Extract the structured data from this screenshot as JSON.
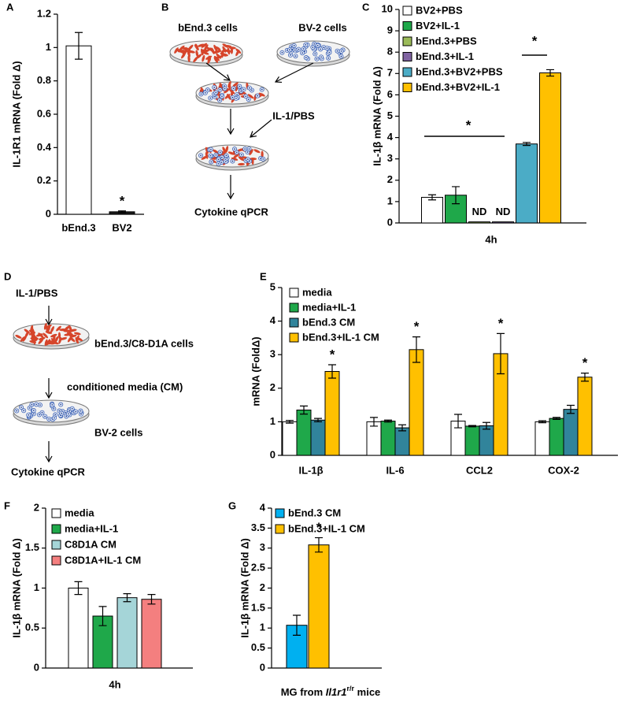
{
  "chart_data": [
    {
      "panel_label": "A",
      "type": "bar",
      "y_label": "IL-1R1 mRNA (Fold Δ)",
      "categories": [
        "bEnd.3",
        "BV2"
      ],
      "values": [
        1.01,
        0.015
      ],
      "errors": [
        0.08,
        0.005
      ],
      "colors": [
        "#ffffff",
        "#1a1a1a"
      ],
      "bar_labels": [
        null,
        "*"
      ],
      "ylim": [
        0,
        1.2
      ],
      "yticks": [
        0,
        0.2,
        0.4,
        0.6,
        0.8,
        1,
        1.2
      ]
    },
    {
      "panel_label": "C",
      "type": "bar",
      "y_label": "IL-1β mRNA (Fold Δ)",
      "categories": [
        "4h"
      ],
      "series": [
        {
          "name": "BV2+PBS",
          "color": "#ffffff",
          "values": [
            1.2
          ],
          "errors": [
            0.12
          ]
        },
        {
          "name": "BV2+IL-1",
          "color": "#1fa84a",
          "values": [
            1.3
          ],
          "errors": [
            0.4
          ]
        },
        {
          "name": "bEnd.3+PBS",
          "color": "#9bbb59",
          "values": [
            0.05
          ],
          "bar_labels": [
            "ND"
          ]
        },
        {
          "name": "bEnd.3+IL-1",
          "color": "#8064a2",
          "values": [
            0.05
          ],
          "bar_labels": [
            "ND"
          ]
        },
        {
          "name": "bEnd.3+BV2+PBS",
          "color": "#4bacc6",
          "values": [
            3.7
          ],
          "errors": [
            0.07
          ]
        },
        {
          "name": "bEnd.3+BV2+IL-1",
          "color": "#ffc000",
          "values": [
            7.03
          ],
          "errors": [
            0.15
          ]
        }
      ],
      "significance": [
        "*",
        "*"
      ],
      "ylim": [
        0,
        10
      ],
      "yticks": [
        0,
        1,
        2,
        3,
        4,
        5,
        6,
        7,
        8,
        9,
        10
      ]
    },
    {
      "panel_label": "E",
      "type": "bar",
      "y_label": "mRNA (FoldΔ)",
      "categories": [
        "IL-1β",
        "IL-6",
        "CCL2",
        "COX-2"
      ],
      "series": [
        {
          "name": "media",
          "color": "#ffffff",
          "values": [
            1.0,
            1.0,
            1.02,
            1.0
          ],
          "errors": [
            0.04,
            0.13,
            0.2,
            0.03
          ]
        },
        {
          "name": "media+IL-1",
          "color": "#1fa84a",
          "values": [
            1.35,
            1.02,
            0.87,
            1.1
          ],
          "errors": [
            0.12,
            0.03,
            0.02,
            0.03
          ]
        },
        {
          "name": "bEnd.3 CM",
          "color": "#31849b",
          "values": [
            1.05,
            0.82,
            0.88,
            1.37
          ],
          "errors": [
            0.05,
            0.09,
            0.1,
            0.12
          ]
        },
        {
          "name": "bEnd.3+IL-1 CM",
          "color": "#ffc000",
          "values": [
            2.5,
            3.15,
            3.03,
            2.33
          ],
          "errors": [
            0.2,
            0.38,
            0.6,
            0.12
          ],
          "bar_labels": [
            "*",
            "*",
            "*",
            "*"
          ]
        }
      ],
      "ylim": [
        0,
        5
      ],
      "yticks": [
        0,
        1,
        2,
        3,
        4,
        5
      ]
    },
    {
      "panel_label": "F",
      "type": "bar",
      "y_label": "IL-1β mRNA (Fold Δ)",
      "categories": [
        "4h"
      ],
      "series": [
        {
          "name": "media",
          "color": "#ffffff",
          "values": [
            1.0
          ],
          "errors": [
            0.08
          ]
        },
        {
          "name": "media+IL-1",
          "color": "#1fa84a",
          "values": [
            0.65
          ],
          "errors": [
            0.12
          ]
        },
        {
          "name": "C8D1A CM",
          "color": "#a5d5d8",
          "values": [
            0.88
          ],
          "errors": [
            0.05
          ]
        },
        {
          "name": "C8D1A+IL-1 CM",
          "color": "#f47f7f",
          "values": [
            0.86
          ],
          "errors": [
            0.06
          ]
        }
      ],
      "ylim": [
        0,
        2
      ],
      "yticks": [
        0,
        0.5,
        1,
        1.5,
        2
      ]
    },
    {
      "panel_label": "G",
      "type": "bar",
      "y_label": "IL-1β mRNA (Fold Δ)",
      "x_label": {
        "prefix": "MG from ",
        "gene": "Il1r1",
        "sup": "r/r",
        "suffix": " mice"
      },
      "series": [
        {
          "name": "bEnd.3 CM",
          "color": "#00b0f0",
          "values": [
            1.07
          ],
          "errors": [
            0.25
          ]
        },
        {
          "name": "bEnd.3+IL-1 CM",
          "color": "#ffc000",
          "values": [
            3.08
          ],
          "errors": [
            0.18
          ],
          "bar_labels": [
            "*"
          ]
        }
      ],
      "ylim": [
        0,
        4
      ],
      "yticks": [
        0,
        0.5,
        1,
        1.5,
        2,
        2.5,
        3,
        3.5,
        4
      ]
    }
  ],
  "diagrams": [
    {
      "panel_label": "B",
      "labels": [
        "bEnd.3 cells",
        "BV-2 cells",
        "IL-1/PBS",
        "Cytokine qPCR"
      ]
    },
    {
      "panel_label": "D",
      "labels": [
        "IL-1/PBS",
        "bEnd.3/C8-D1A cells",
        "conditioned media (CM)",
        "BV-2 cells",
        "Cytokine qPCR"
      ]
    }
  ]
}
